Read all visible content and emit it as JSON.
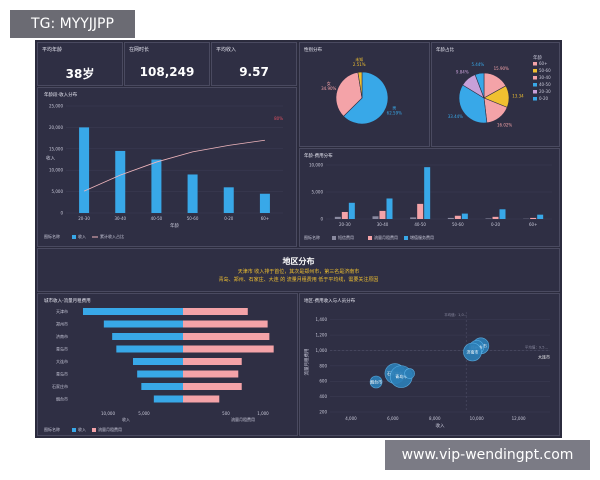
{
  "watermark_top": "TG: MYYJJPP",
  "watermark_bottom": "www.vip-wendingpt.com",
  "kpis": [
    {
      "label": "平均年龄",
      "value": "38岁"
    },
    {
      "label": "在网时长",
      "value": "108,249"
    },
    {
      "label": "平均收入",
      "value": "9.57"
    }
  ],
  "region": {
    "title": "地区分布",
    "line1": "天津市 收入排于首位，其次是郑州市，第三名是济南市",
    "line2": "青岛、郑州、石家庄、大连 的 流量月租费用 低于平均线，需要关注原因"
  },
  "colors": {
    "blue": "#38a8e8",
    "pink": "#f4a3a8",
    "line": "#f0b6bd",
    "dark": "#2b2b3d"
  },
  "chart_data": [
    {
      "id": "age_income",
      "type": "bar",
      "title": "年龄段-收入分布",
      "categories": [
        "20-30",
        "30-40",
        "40-50",
        "50-60",
        "0-20",
        "60+"
      ],
      "series": [
        {
          "name": "收入",
          "values": [
            20000,
            14500,
            12500,
            9000,
            6000,
            4500
          ]
        },
        {
          "name": "累计收入占比",
          "type": "line",
          "values": [
            0.3,
            0.52,
            0.7,
            0.84,
            0.93,
            1.0
          ]
        }
      ],
      "yticks": [
        "0",
        "5,000",
        "10,000",
        "15,000",
        "20,000",
        "25,000"
      ],
      "ylim": [
        0,
        25000
      ],
      "xlabel": "年龄",
      "ylabel": "收入",
      "legend_prefix": "图标名称",
      "annotation": "80%"
    },
    {
      "id": "gender_pie",
      "type": "pie",
      "title": "性别分布",
      "slices": [
        {
          "name": "男",
          "value": 62.59,
          "label": "62.59%",
          "color": "#38a8e8"
        },
        {
          "name": "女",
          "value": 34.9,
          "label": "34.90%",
          "color": "#f4a3a8"
        },
        {
          "name": "未知",
          "value": 2.51,
          "label": "2.51%",
          "color": "#f0c030"
        }
      ]
    },
    {
      "id": "age_pie",
      "type": "pie",
      "title": "年龄占比",
      "legend_title": "年龄",
      "slices": [
        {
          "name": "60+",
          "value": 15.9,
          "label": "15.90%",
          "color": "#f4a3a8"
        },
        {
          "name": "50-60",
          "value": 13.34,
          "label": "13.34",
          "color": "#f0c030"
        },
        {
          "name": "30-40",
          "value": 16.02,
          "label": "16.02%",
          "color": "#f4a3a8"
        },
        {
          "name": "40-50",
          "value": 33.44,
          "label": "33.44%",
          "color": "#38a8e8"
        },
        {
          "name": "20-30",
          "value": 9.84,
          "label": "9.84%",
          "color": "#c8a0d8"
        },
        {
          "name": "0-20",
          "value": 5.44,
          "label": "5.44%",
          "color": "#38a8e8"
        }
      ]
    },
    {
      "id": "age_fee",
      "type": "bar",
      "title": "年龄-费用分布",
      "categories": [
        "20-30",
        "30-40",
        "40-50",
        "50-60",
        "0-20",
        "60+"
      ],
      "series": [
        {
          "name": "短信费用",
          "values": [
            400,
            500,
            300,
            200,
            100,
            50
          ]
        },
        {
          "name": "流量月租费用",
          "values": [
            1300,
            1500,
            2800,
            600,
            400,
            200
          ]
        },
        {
          "name": "增值服务费用",
          "values": [
            3000,
            3800,
            9600,
            1000,
            1800,
            800
          ]
        }
      ],
      "series_colors": [
        "#8a8aa0",
        "#f4a3a8",
        "#38a8e8"
      ],
      "yticks": [
        "0",
        "5,000",
        "10,000"
      ],
      "ylim": [
        0,
        10000
      ],
      "legend_prefix": "图标名称"
    },
    {
      "id": "city_butterfly",
      "type": "bar",
      "title": "城市收入-流量月租费用",
      "categories": [
        "天津市",
        "郑州市",
        "济南市",
        "青岛市",
        "大连市",
        "青岛市",
        "石家庄市",
        "烟台市"
      ],
      "series": [
        {
          "name": "收入",
          "values": [
            12000,
            9500,
            8500,
            8000,
            6000,
            5500,
            5000,
            3500
          ]
        },
        {
          "name": "流量月租费用",
          "values": [
            750,
            980,
            1000,
            1050,
            680,
            640,
            680,
            420
          ]
        }
      ],
      "xlabel_left": "收入",
      "xlabel_right": "流量月租费用",
      "left_ticks": [
        "10,000",
        "5,000"
      ],
      "right_ticks": [
        "500",
        "1,000"
      ],
      "legend_prefix": "图标名称"
    },
    {
      "id": "region_scatter",
      "type": "scatter",
      "title": "地区-费用收入与人员分布",
      "points": [
        {
          "name": "天津市",
          "x": 10200,
          "y": 1060,
          "size": 8
        },
        {
          "name": "郑州市",
          "x": 10000,
          "y": 1040,
          "size": 7
        },
        {
          "name": "济南市",
          "x": 9800,
          "y": 980,
          "size": 9
        },
        {
          "name": "石家庄市",
          "x": 6100,
          "y": 700,
          "size": 10
        },
        {
          "name": "青岛市",
          "x": 6400,
          "y": 660,
          "size": 11
        },
        {
          "name": "烟台市",
          "x": 5200,
          "y": 590,
          "size": 6
        },
        {
          "name": "",
          "x": 6800,
          "y": 700,
          "size": 5
        }
      ],
      "xticks": [
        "4,000",
        "6,000",
        "8,000",
        "10,000",
        "12,000"
      ],
      "yticks": [
        "200",
        "400",
        "600",
        "800",
        "1,000",
        "1,200",
        "1,400"
      ],
      "xlim": [
        3000,
        13500
      ],
      "ylim": [
        200,
        1500
      ],
      "xlabel": "收入",
      "ylabel": "流量月租费用",
      "ref_labels": [
        "平均值：1,0…",
        "平均值：9,5…"
      ],
      "outside_label": "大连市"
    }
  ]
}
